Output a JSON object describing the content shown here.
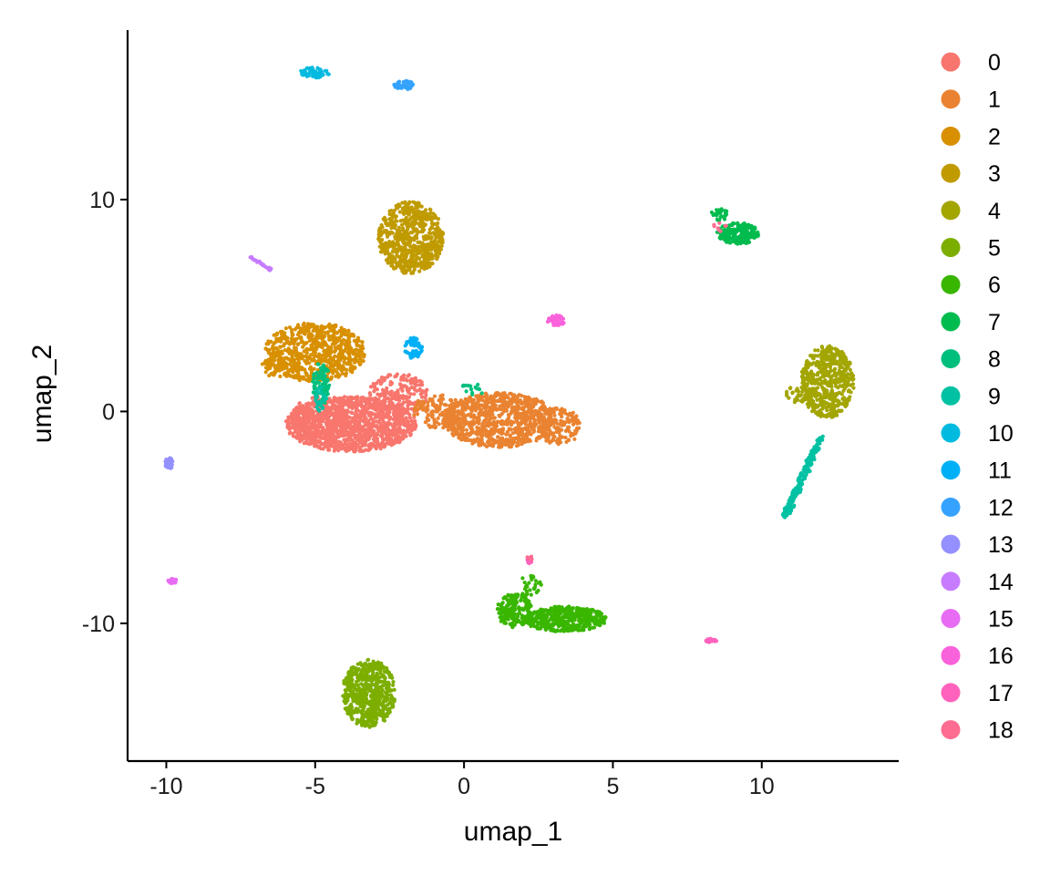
{
  "chart_data": {
    "type": "scatter",
    "xlabel": "umap_1",
    "ylabel": "umap_2",
    "xlim": [
      -11.3,
      14.6
    ],
    "ylim": [
      -16.5,
      18.0
    ],
    "x_ticks": [
      -10,
      -5,
      0,
      5,
      10
    ],
    "x_tick_labels": [
      "-10",
      "-5",
      "0",
      "5",
      "10"
    ],
    "y_ticks": [
      -10,
      0,
      10
    ],
    "y_tick_labels": [
      "-10",
      "0",
      "10"
    ],
    "grid": false,
    "legend_position": "right",
    "point_size": 2.1,
    "clusters": [
      {
        "name": "0",
        "color": "#F8766D",
        "regions": [
          {
            "cx": -3.8,
            "cy": -0.6,
            "rx": 2.2,
            "ry": 1.3,
            "n": 1300
          },
          {
            "cx": -2.2,
            "cy": 0.8,
            "rx": 1.0,
            "ry": 1.0,
            "n": 220
          },
          {
            "cx": -4.9,
            "cy": -0.2,
            "rx": 0.9,
            "ry": 0.9,
            "n": 120
          }
        ]
      },
      {
        "name": "1",
        "color": "#EA8331",
        "regions": [
          {
            "cx": 1.2,
            "cy": -0.4,
            "rx": 1.9,
            "ry": 1.3,
            "n": 900
          },
          {
            "cx": 3.2,
            "cy": -0.7,
            "rx": 0.7,
            "ry": 0.9,
            "n": 140
          },
          {
            "cx": -0.9,
            "cy": 0.0,
            "rx": 0.9,
            "ry": 0.8,
            "n": 140
          }
        ]
      },
      {
        "name": "2",
        "color": "#D89000",
        "regions": [
          {
            "cx": -5.0,
            "cy": 2.8,
            "rx": 1.7,
            "ry": 1.4,
            "n": 700
          },
          {
            "cx": -6.2,
            "cy": 2.1,
            "rx": 0.6,
            "ry": 0.5,
            "n": 60
          }
        ]
      },
      {
        "name": "3",
        "color": "#C09B00",
        "regions": [
          {
            "cx": -1.8,
            "cy": 8.2,
            "rx": 1.1,
            "ry": 1.7,
            "n": 650
          }
        ]
      },
      {
        "name": "4",
        "color": "#A3A500",
        "regions": [
          {
            "cx": 12.2,
            "cy": 1.4,
            "rx": 0.9,
            "ry": 1.7,
            "n": 520
          },
          {
            "cx": 11.2,
            "cy": 0.8,
            "rx": 0.4,
            "ry": 0.4,
            "n": 40
          }
        ]
      },
      {
        "name": "5",
        "color": "#7CAE00",
        "regions": [
          {
            "cx": -3.2,
            "cy": -13.3,
            "rx": 0.9,
            "ry": 1.6,
            "n": 600
          }
        ]
      },
      {
        "name": "6",
        "color": "#39B600",
        "regions": [
          {
            "cx": 3.4,
            "cy": -9.8,
            "rx": 1.4,
            "ry": 0.6,
            "n": 420
          },
          {
            "cx": 1.7,
            "cy": -9.4,
            "rx": 0.6,
            "ry": 0.8,
            "n": 160
          },
          {
            "cx": 2.2,
            "cy": -8.2,
            "rx": 0.4,
            "ry": 0.5,
            "n": 30
          }
        ]
      },
      {
        "name": "7",
        "color": "#00BB4E",
        "regions": [
          {
            "cx": 9.2,
            "cy": 8.4,
            "rx": 0.7,
            "ry": 0.5,
            "n": 220
          },
          {
            "cx": 8.6,
            "cy": 9.3,
            "rx": 0.3,
            "ry": 0.3,
            "n": 25
          }
        ]
      },
      {
        "name": "8",
        "color": "#00BF7D",
        "regions": [
          {
            "cx": -4.8,
            "cy": 1.3,
            "rx": 0.3,
            "ry": 1.0,
            "n": 80
          },
          {
            "cx": 0.3,
            "cy": 1.0,
            "rx": 0.5,
            "ry": 0.3,
            "n": 15
          }
        ]
      },
      {
        "name": "9",
        "color": "#00C1A3",
        "line": {
          "x0": 10.8,
          "y0": -4.9,
          "x1": 12.0,
          "y1": -1.2,
          "width": 0.22,
          "n": 180
        },
        "regions": [
          {
            "cx": -4.8,
            "cy": 0.6,
            "rx": 0.2,
            "ry": 0.6,
            "n": 25
          }
        ]
      },
      {
        "name": "10",
        "color": "#00BAE0",
        "regions": [
          {
            "cx": -5.0,
            "cy": 16.0,
            "rx": 0.5,
            "ry": 0.25,
            "n": 60
          }
        ]
      },
      {
        "name": "11",
        "color": "#00B0F6",
        "regions": [
          {
            "cx": -1.7,
            "cy": 3.0,
            "rx": 0.3,
            "ry": 0.5,
            "n": 60
          }
        ]
      },
      {
        "name": "12",
        "color": "#35A2FF",
        "regions": [
          {
            "cx": -2.0,
            "cy": 15.4,
            "rx": 0.35,
            "ry": 0.2,
            "n": 55
          }
        ]
      },
      {
        "name": "13",
        "color": "#9590FF",
        "regions": [
          {
            "cx": -9.9,
            "cy": -2.4,
            "rx": 0.15,
            "ry": 0.3,
            "n": 30
          }
        ]
      },
      {
        "name": "14",
        "color": "#C77CFF",
        "line": {
          "x0": -7.2,
          "y0": 7.3,
          "x1": -6.5,
          "y1": 6.7,
          "width": 0.08,
          "n": 35
        },
        "regions": []
      },
      {
        "name": "15",
        "color": "#E76BF3",
        "regions": [
          {
            "cx": -9.8,
            "cy": -8.0,
            "rx": 0.15,
            "ry": 0.12,
            "n": 18
          }
        ]
      },
      {
        "name": "16",
        "color": "#FA62DB",
        "regions": [
          {
            "cx": 3.1,
            "cy": 4.3,
            "rx": 0.3,
            "ry": 0.25,
            "n": 40
          }
        ]
      },
      {
        "name": "17",
        "color": "#FF62BC",
        "regions": [
          {
            "cx": 8.3,
            "cy": -10.8,
            "rx": 0.2,
            "ry": 0.1,
            "n": 18
          },
          {
            "cx": 2.2,
            "cy": -7.0,
            "rx": 0.1,
            "ry": 0.2,
            "n": 10
          }
        ]
      },
      {
        "name": "18",
        "color": "#FF6C91",
        "regions": [
          {
            "cx": 8.6,
            "cy": 8.7,
            "rx": 0.3,
            "ry": 0.2,
            "n": 8
          },
          {
            "cx": 2.2,
            "cy": -6.9,
            "rx": 0.1,
            "ry": 0.15,
            "n": 6
          }
        ]
      }
    ]
  }
}
